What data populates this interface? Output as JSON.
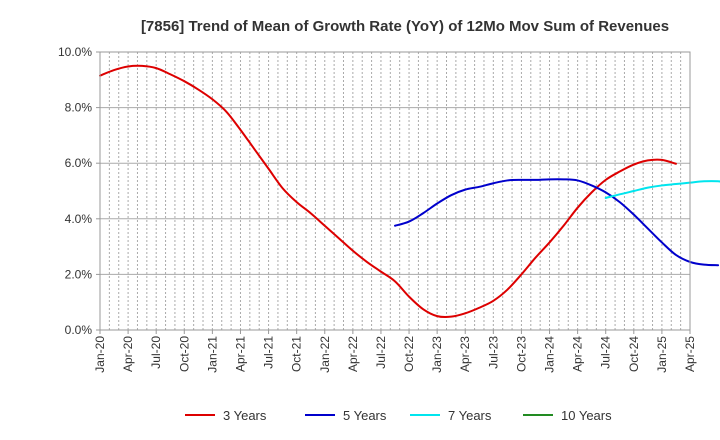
{
  "chart_data": {
    "type": "line",
    "title": "[7856]  Trend of Mean of Growth Rate (YoY) of 12Mo Mov Sum of Revenues",
    "xlabel": "",
    "ylabel": "",
    "ylim": [
      0,
      10
    ],
    "yticks": [
      "0.0%",
      "2.0%",
      "4.0%",
      "6.0%",
      "8.0%",
      "10.0%"
    ],
    "xticks": [
      "Jan-20",
      "Apr-20",
      "Jul-20",
      "Oct-20",
      "Jan-21",
      "Apr-21",
      "Jul-21",
      "Oct-21",
      "Jan-22",
      "Apr-22",
      "Jul-22",
      "Oct-22",
      "Jan-23",
      "Apr-23",
      "Jul-23",
      "Oct-23",
      "Jan-24",
      "Apr-24",
      "Jul-24",
      "Oct-24",
      "Jan-25",
      "Apr-25"
    ],
    "grid": "vertical dotted",
    "legend_position": "bottom",
    "series": [
      {
        "name": "3 Years",
        "color": "#dd0000",
        "start_index": 0,
        "values": [
          9.15,
          9.35,
          9.48,
          9.5,
          9.42,
          9.2,
          8.95,
          8.65,
          8.3,
          7.85,
          7.2,
          6.5,
          5.8,
          5.1,
          4.6,
          4.2,
          3.75,
          3.3,
          2.85,
          2.45,
          2.1,
          1.75,
          1.2,
          0.75,
          0.5,
          0.48,
          0.6,
          0.8,
          1.05,
          1.45,
          2.0,
          2.6,
          3.15,
          3.75,
          4.4,
          4.95,
          5.4,
          5.7,
          5.95,
          6.1,
          6.12,
          5.98
        ]
      },
      {
        "name": "5 Years",
        "color": "#0000cc",
        "start_index": 21,
        "values": [
          3.75,
          3.9,
          4.2,
          4.55,
          4.85,
          5.05,
          5.15,
          5.28,
          5.38,
          5.4,
          5.4,
          5.42,
          5.42,
          5.38,
          5.2,
          4.95,
          4.6,
          4.15,
          3.65,
          3.15,
          2.7,
          2.45,
          2.35,
          2.33
        ]
      },
      {
        "name": "7 Years",
        "color": "#00e5ee",
        "start_index": 36,
        "values": [
          4.75,
          4.88,
          5.0,
          5.12,
          5.2,
          5.25,
          5.3,
          5.35,
          5.35,
          5.28
        ]
      },
      {
        "name": "10 Years",
        "color": "#228b22",
        "start_index": 0,
        "values": []
      }
    ]
  }
}
